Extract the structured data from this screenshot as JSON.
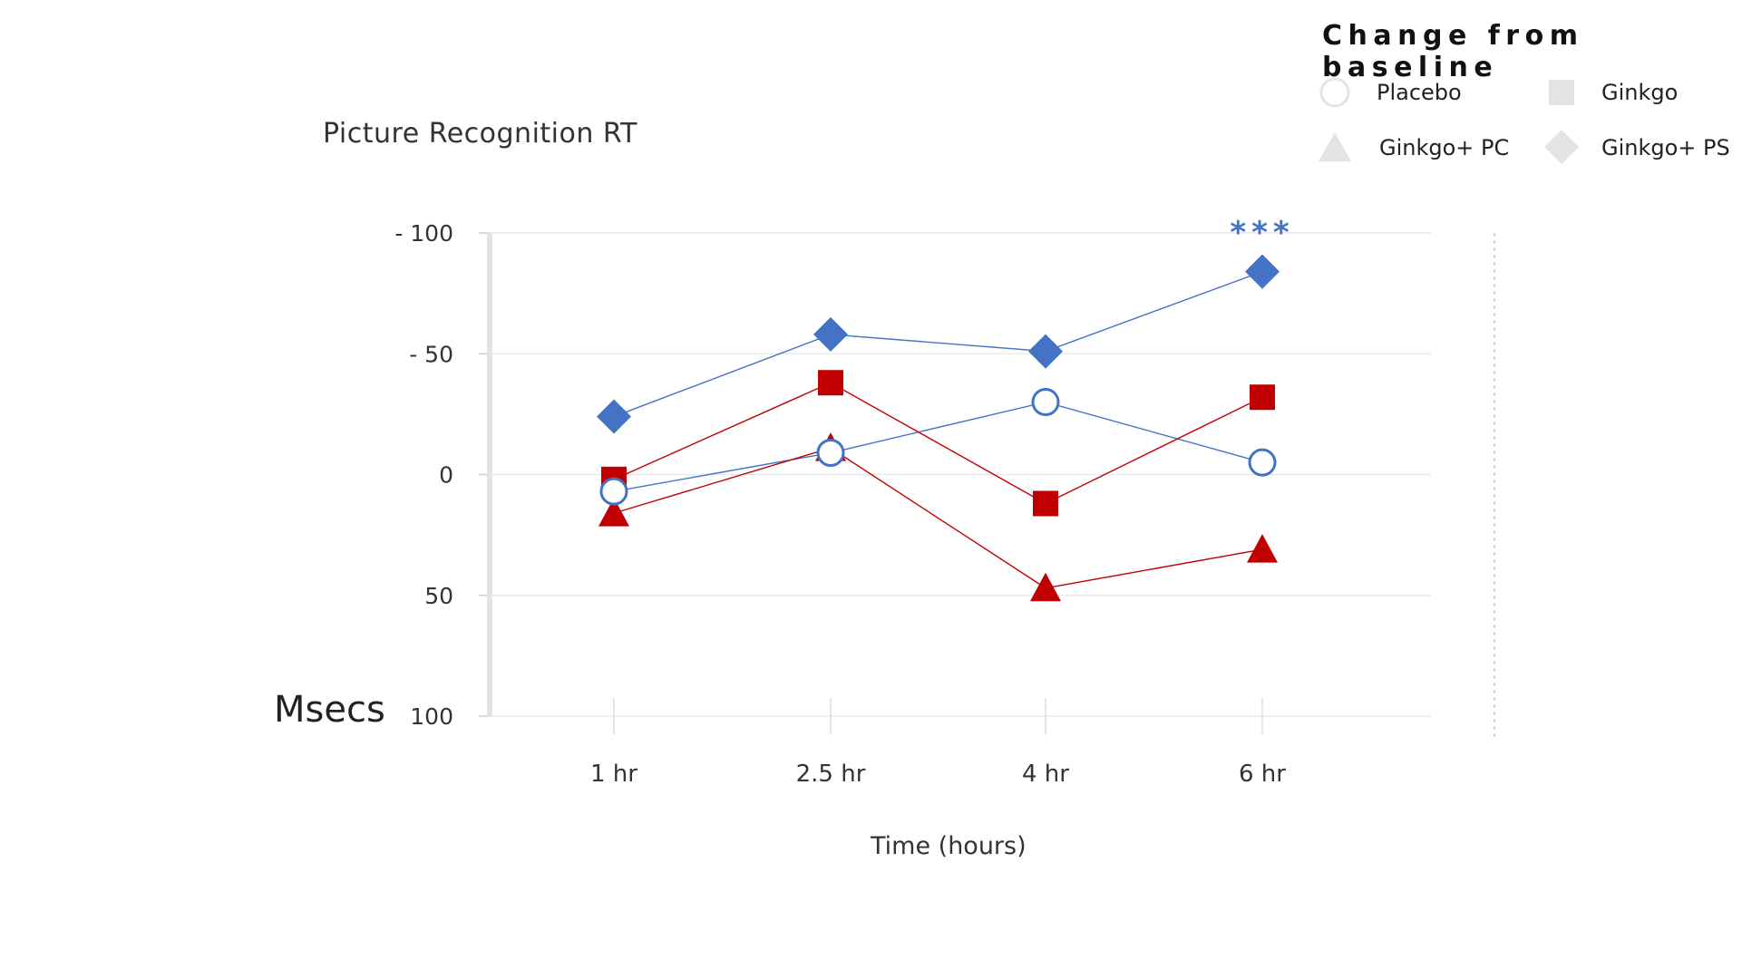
{
  "chart_data": {
    "type": "line",
    "title": "Picture Recognition RT",
    "xlabel": "Time (hours)",
    "ylabel": "Msecs",
    "categories": [
      "1 hr",
      "2.5 hr",
      "4 hr",
      "6 hr"
    ],
    "y_ticks": [
      -100,
      -50,
      0,
      50,
      100
    ],
    "y_tick_labels": [
      "- 100",
      "- 50",
      "0",
      "50",
      "100"
    ],
    "ylim": [
      -100,
      100
    ],
    "y_inverted": true,
    "grid": true,
    "legend": {
      "title": "Change from baseline",
      "position": "top-right",
      "entries": [
        "Placebo",
        "Ginkgo",
        "Ginkgo+ PC",
        "Ginkgo+ PS"
      ]
    },
    "series": [
      {
        "name": "Placebo",
        "marker": "circle-open",
        "color": "#4472C4",
        "values": [
          7,
          -9,
          -30,
          -5
        ]
      },
      {
        "name": "Ginkgo",
        "marker": "square",
        "color": "#C00000",
        "values": [
          2,
          -38,
          12,
          -32
        ]
      },
      {
        "name": "Ginkgo+ PC",
        "marker": "triangle",
        "color": "#C00000",
        "values": [
          16,
          -11,
          47,
          31
        ]
      },
      {
        "name": "Ginkgo+ PS",
        "marker": "diamond",
        "color": "#4472C4",
        "values": [
          -24,
          -58,
          -51,
          -84
        ]
      }
    ],
    "annotations": [
      {
        "text": "***",
        "category": "6 hr",
        "color": "#4472C4"
      }
    ]
  }
}
